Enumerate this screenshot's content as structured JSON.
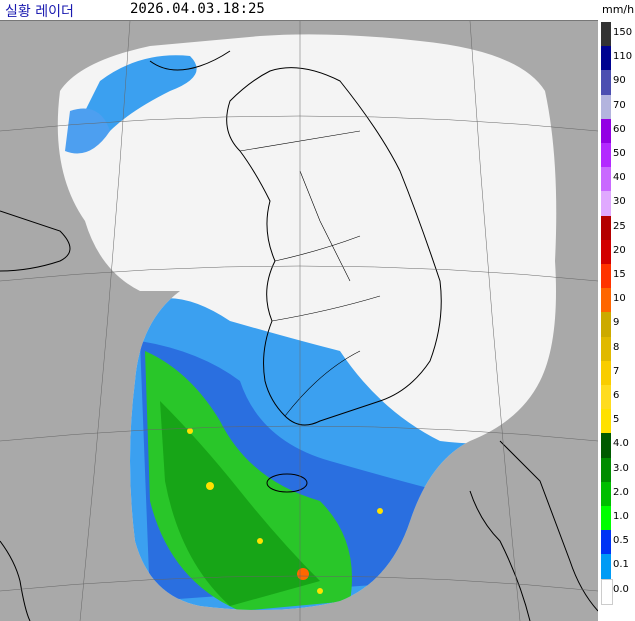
{
  "header": {
    "title": "실황 레이더",
    "timestamp": "2026.04.03.18:25"
  },
  "legend": {
    "unit": "mm/h",
    "levels": [
      {
        "label": "150",
        "color": "#333333"
      },
      {
        "label": "110",
        "color": "#000390"
      },
      {
        "label": "90",
        "color": "#4c4eb1"
      },
      {
        "label": "70",
        "color": "#b3b4de"
      },
      {
        "label": "60",
        "color": "#9300e4"
      },
      {
        "label": "50",
        "color": "#b329ff"
      },
      {
        "label": "40",
        "color": "#c969ff"
      },
      {
        "label": "30",
        "color": "#e0a9ff"
      },
      {
        "label": "25",
        "color": "#b40000"
      },
      {
        "label": "20",
        "color": "#d20000"
      },
      {
        "label": "15",
        "color": "#ff3300"
      },
      {
        "label": "10",
        "color": "#ff6600"
      },
      {
        "label": "9",
        "color": "#ccaa00"
      },
      {
        "label": "8",
        "color": "#e0b900"
      },
      {
        "label": "7",
        "color": "#f9cd00"
      },
      {
        "label": "6",
        "color": "#ffdc1f"
      },
      {
        "label": "5",
        "color": "#ffe100"
      },
      {
        "label": "4.0",
        "color": "#005a00"
      },
      {
        "label": "3.0",
        "color": "#008c00"
      },
      {
        "label": "2.0",
        "color": "#00be00"
      },
      {
        "label": "1.0",
        "color": "#00ff00"
      },
      {
        "label": "0.5",
        "color": "#0033f5"
      },
      {
        "label": "0.1",
        "color": "#009bf5"
      },
      {
        "label": "0.0",
        "color": "#ffffff"
      }
    ]
  }
}
